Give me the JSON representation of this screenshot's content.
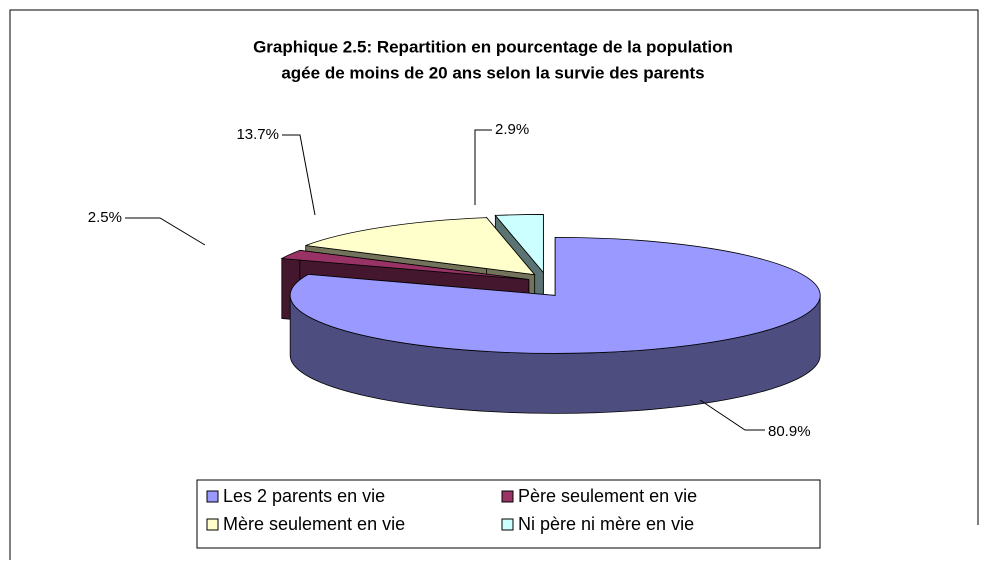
{
  "chart_data": {
    "type": "pie3d",
    "title": [
      "Graphique 2.5: Repartition en pourcentage de la population",
      "agée de moins de 20 ans selon la survie des parents"
    ],
    "categories": [
      "Les 2 parents en vie",
      "Père seulement en vie",
      "Mère seulement en vie",
      "Ni père ni mère en vie"
    ],
    "values": [
      80.9,
      2.5,
      13.7,
      2.9
    ],
    "value_labels": [
      "80.9%",
      "2.5%",
      "13.7%",
      "2.9%"
    ],
    "colors": [
      "#9999ff",
      "#993366",
      "#ffffcc",
      "#ccffff"
    ]
  }
}
